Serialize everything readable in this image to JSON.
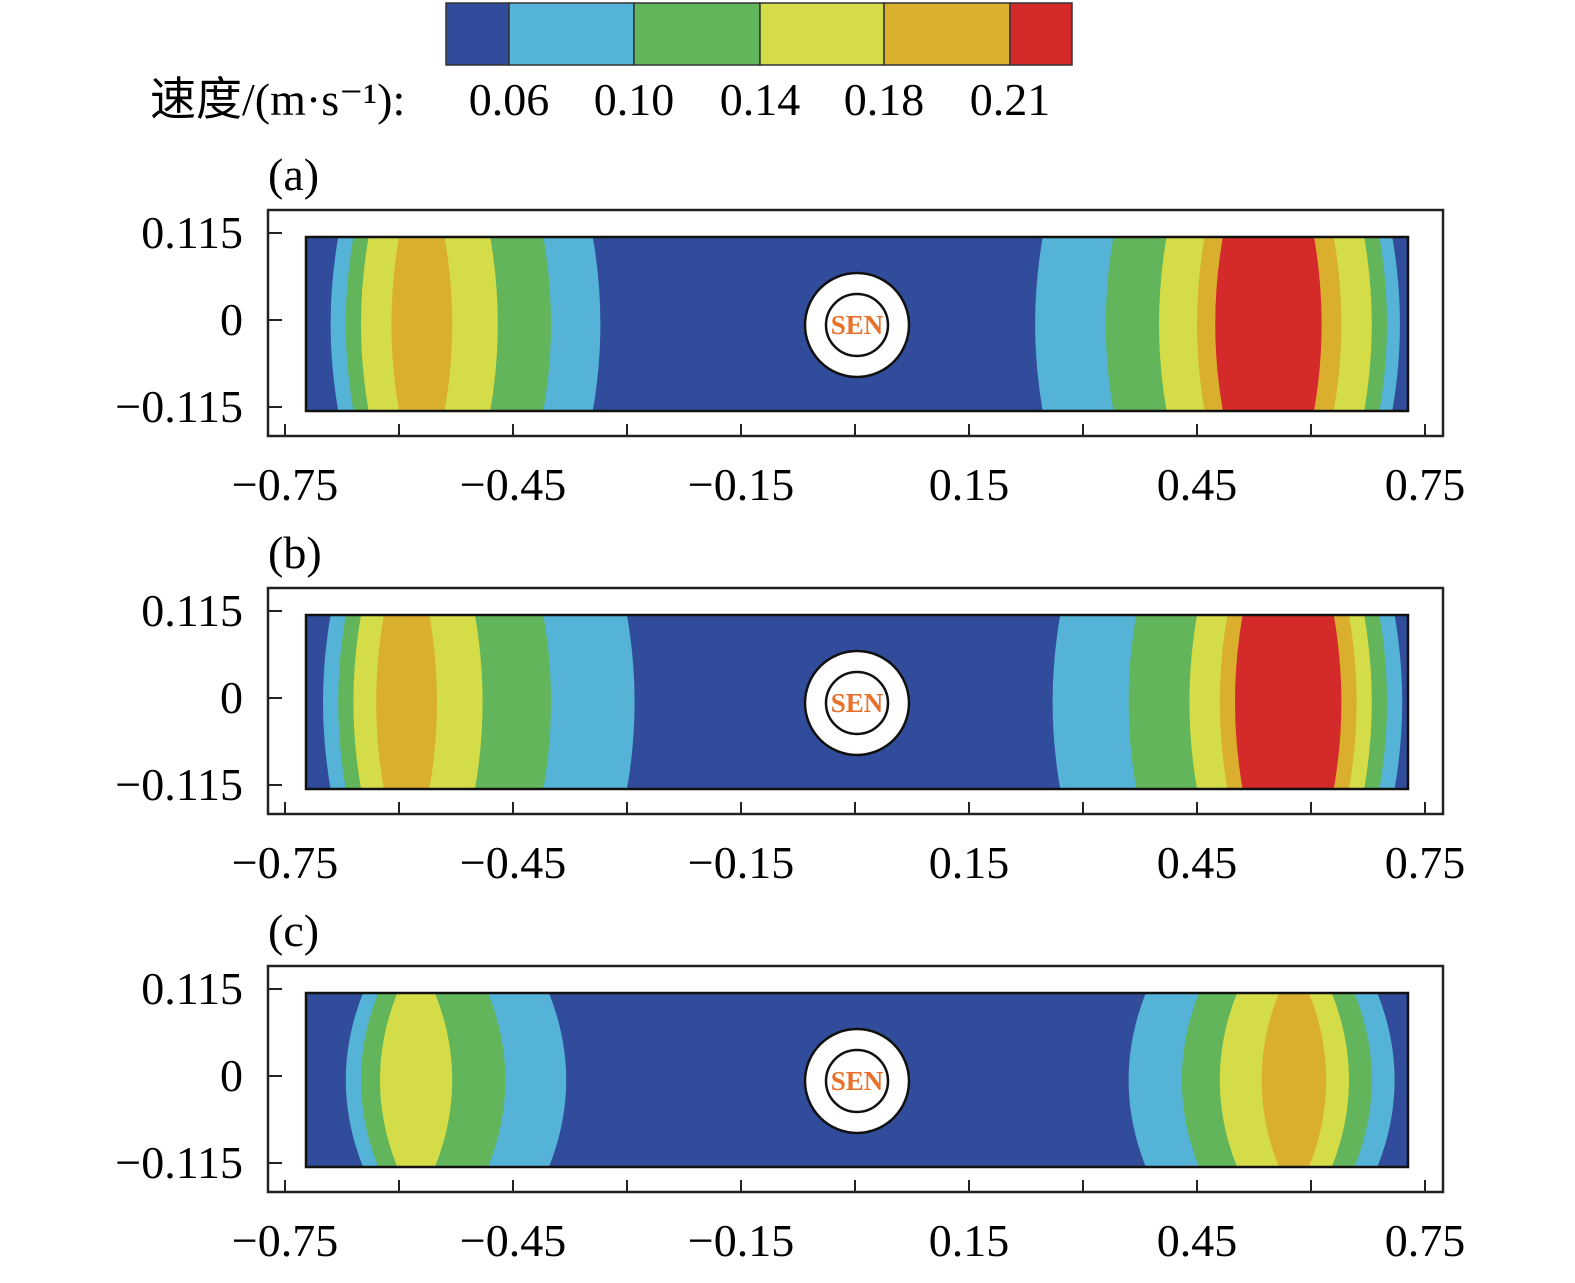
{
  "colorbar": {
    "label": "速度/(m·s⁻¹):",
    "ticks": [
      "0.06",
      "0.10",
      "0.14",
      "0.18",
      "0.21"
    ],
    "colors": [
      "#314c9a",
      "#54b3d6",
      "#63b55b",
      "#d4dc48",
      "#dbaf2e",
      "#d42a2a"
    ]
  },
  "chart_data": [
    {
      "type": "heatmap",
      "panel_label": "(a)",
      "xlim": [
        -0.75,
        0.75
      ],
      "ylim": [
        -0.115,
        0.115
      ],
      "xticks": [
        "−0.75",
        "−0.45",
        "−0.15",
        "0.15",
        "0.45",
        "0.75"
      ],
      "yticks": [
        "0.115",
        "0",
        "−0.115"
      ],
      "sensor_label": "SEN",
      "bands": [
        {
          "level": 1,
          "x": [
            -0.69,
            -0.335
          ]
        },
        {
          "level": 2,
          "x": [
            -0.67,
            -0.4
          ]
        },
        {
          "level": 3,
          "x": [
            -0.65,
            -0.47
          ]
        },
        {
          "level": 4,
          "x": [
            -0.61,
            -0.53
          ]
        },
        {
          "level": 1,
          "x": [
            0.237,
            0.717
          ]
        },
        {
          "level": 2,
          "x": [
            0.33,
            0.7
          ]
        },
        {
          "level": 3,
          "x": [
            0.4,
            0.68
          ]
        },
        {
          "level": 4,
          "x": [
            0.45,
            0.64
          ]
        },
        {
          "level": 5,
          "x": [
            0.474,
            0.614
          ]
        }
      ]
    },
    {
      "type": "heatmap",
      "panel_label": "(b)",
      "xlim": [
        -0.75,
        0.75
      ],
      "ylim": [
        -0.115,
        0.115
      ],
      "xticks": [
        "−0.75",
        "−0.45",
        "−0.15",
        "0.15",
        "0.45",
        "0.75"
      ],
      "yticks": [
        "0.115",
        "0",
        "−0.115"
      ],
      "sensor_label": "SEN",
      "bands": [
        {
          "level": 1,
          "x": [
            -0.7,
            -0.29
          ]
        },
        {
          "level": 2,
          "x": [
            -0.68,
            -0.4
          ]
        },
        {
          "level": 3,
          "x": [
            -0.66,
            -0.49
          ]
        },
        {
          "level": 4,
          "x": [
            -0.63,
            -0.55
          ]
        },
        {
          "level": 1,
          "x": [
            0.26,
            0.72
          ]
        },
        {
          "level": 2,
          "x": [
            0.36,
            0.7
          ]
        },
        {
          "level": 3,
          "x": [
            0.44,
            0.68
          ]
        },
        {
          "level": 4,
          "x": [
            0.48,
            0.66
          ]
        },
        {
          "level": 5,
          "x": [
            0.5,
            0.64
          ]
        }
      ]
    },
    {
      "type": "heatmap",
      "panel_label": "(c)",
      "xlim": [
        -0.75,
        0.75
      ],
      "ylim": [
        -0.115,
        0.115
      ],
      "xticks": [
        "−0.75",
        "−0.45",
        "−0.15",
        "0.15",
        "0.45",
        "0.75"
      ],
      "yticks": [
        "0.115",
        "0",
        "−0.115"
      ],
      "sensor_label": "SEN",
      "bands": [
        {
          "level": 1,
          "x": [
            -0.67,
            -0.38
          ]
        },
        {
          "level": 2,
          "x": [
            -0.65,
            -0.46
          ]
        },
        {
          "level": 3,
          "x": [
            -0.625,
            -0.53
          ]
        },
        {
          "level": 1,
          "x": [
            0.36,
            0.71
          ]
        },
        {
          "level": 2,
          "x": [
            0.43,
            0.68
          ]
        },
        {
          "level": 3,
          "x": [
            0.48,
            0.65
          ]
        },
        {
          "level": 4,
          "x": [
            0.535,
            0.62
          ]
        }
      ]
    }
  ]
}
